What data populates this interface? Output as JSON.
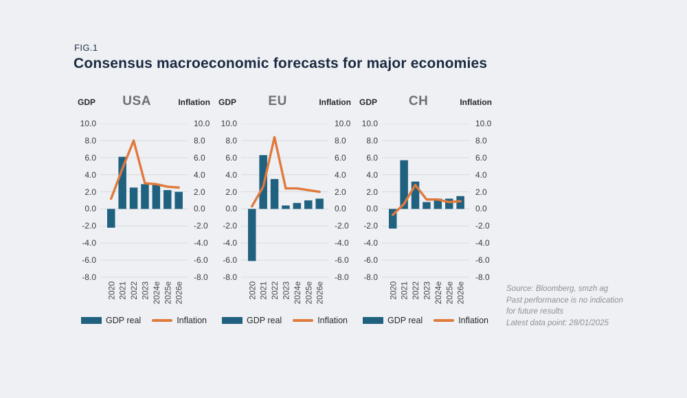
{
  "header": {
    "fig_label": "FIG.1",
    "title": "Consensus macroeconomic forecasts for major economies"
  },
  "axis": {
    "ticks": [
      "10.0",
      "8.0",
      "6.0",
      "4.0",
      "2.0",
      "0.0",
      "-2.0",
      "-4.0",
      "-6.0",
      "-8.0"
    ],
    "tick_values": [
      10,
      8,
      6,
      4,
      2,
      0,
      -2,
      -4,
      -6,
      -8
    ]
  },
  "legend": {
    "gdp_label": "GDP real",
    "inflation_label": "Inflation"
  },
  "colors": {
    "background": "#eef0f3",
    "bar": "#20617f",
    "line": "#e0793c",
    "grid": "#d8dade",
    "title": "#1a2940",
    "country": "#6c7074",
    "xlabel": "#45484c"
  },
  "source": {
    "lines": [
      "Source: Bloomberg, smzh ag",
      "Past performance is no indication",
      "for future results",
      "Latest data point: 28/01/2025"
    ]
  },
  "chart_data": [
    {
      "type": "bar",
      "title": "USA",
      "left_axis_title": "GDP",
      "right_axis_title": "Inflation",
      "categories": [
        "2020",
        "2021",
        "2022",
        "2023",
        "2024e",
        "2025e",
        "2026e"
      ],
      "series": [
        {
          "name": "GDP real",
          "type": "bar",
          "values": [
            -2.2,
            6.1,
            2.5,
            2.9,
            2.8,
            2.2,
            2.0
          ]
        },
        {
          "name": "Inflation",
          "type": "line",
          "values": [
            1.2,
            4.7,
            8.0,
            3.0,
            2.9,
            2.6,
            2.5
          ]
        }
      ],
      "ylim": [
        -8,
        10
      ],
      "grid": true,
      "legend_position": "bottom"
    },
    {
      "type": "bar",
      "title": "EU",
      "left_axis_title": "GDP",
      "right_axis_title": "Inflation",
      "categories": [
        "2020",
        "2021",
        "2022",
        "2023",
        "2024e",
        "2025e",
        "2026e"
      ],
      "series": [
        {
          "name": "GDP real",
          "type": "bar",
          "values": [
            -6.1,
            6.3,
            3.5,
            0.4,
            0.7,
            1.0,
            1.2
          ]
        },
        {
          "name": "Inflation",
          "type": "line",
          "values": [
            0.3,
            2.6,
            8.4,
            2.4,
            2.4,
            2.2,
            2.0
          ]
        }
      ],
      "ylim": [
        -8,
        10
      ],
      "grid": true,
      "legend_position": "bottom"
    },
    {
      "type": "bar",
      "title": "CH",
      "left_axis_title": "GDP",
      "right_axis_title": "Inflation",
      "categories": [
        "2020",
        "2021",
        "2022",
        "2023",
        "2024e",
        "2025e",
        "2026e"
      ],
      "series": [
        {
          "name": "GDP real",
          "type": "bar",
          "values": [
            -2.3,
            5.7,
            3.2,
            0.8,
            1.2,
            1.2,
            1.5
          ]
        },
        {
          "name": "Inflation",
          "type": "line",
          "values": [
            -0.7,
            0.6,
            2.8,
            1.1,
            1.1,
            0.8,
            0.9
          ]
        }
      ],
      "ylim": [
        -8,
        10
      ],
      "grid": true,
      "legend_position": "bottom"
    }
  ]
}
